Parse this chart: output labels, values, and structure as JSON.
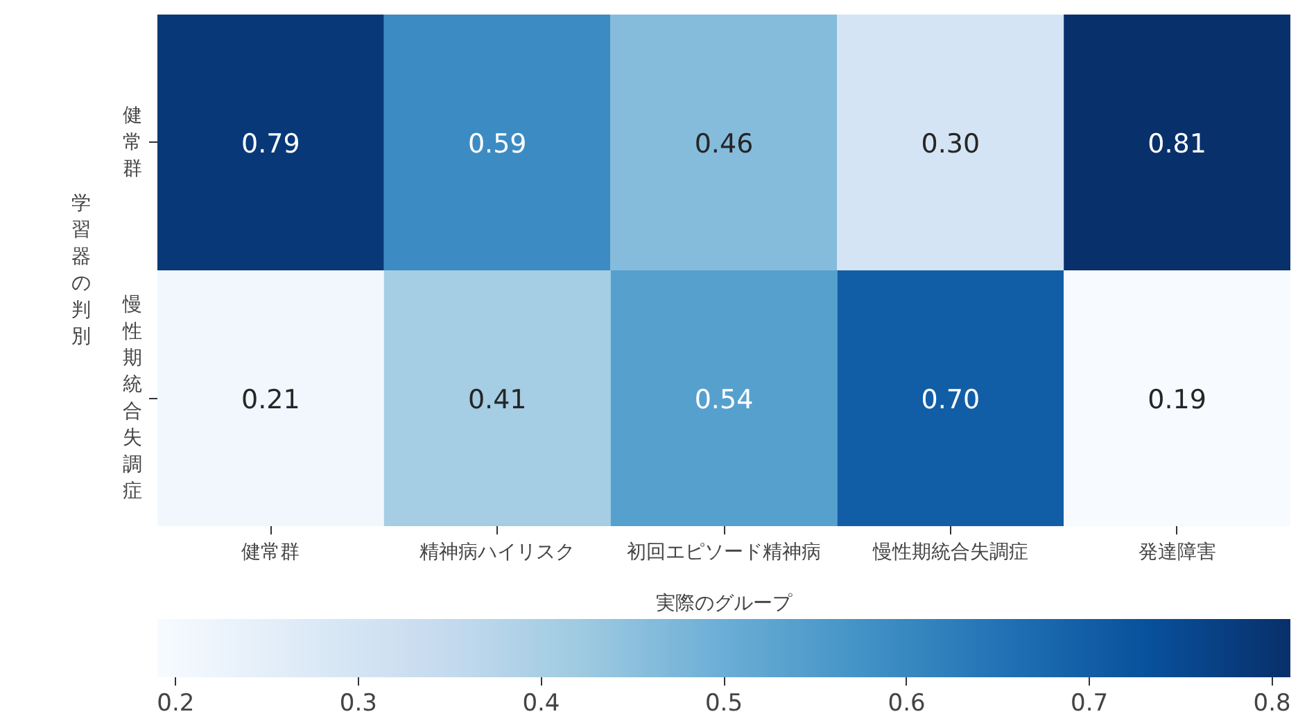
{
  "chart_data": {
    "type": "heatmap",
    "xlabel": "実際のグループ",
    "ylabel": "学習器の判別",
    "categories": [
      "健常群",
      "精神病ハイリスク",
      "初回エピソード精神病",
      "慢性期統合失調症",
      "発達障害"
    ],
    "y_categories": [
      "健常群",
      "慢性期統合失調症"
    ],
    "cells": [
      [
        0.79,
        0.59,
        0.46,
        0.3,
        0.81
      ],
      [
        0.21,
        0.41,
        0.54,
        0.7,
        0.19
      ]
    ],
    "cell_labels": [
      [
        "0.79",
        "0.59",
        "0.46",
        "0.30",
        "0.81"
      ],
      [
        "0.21",
        "0.41",
        "0.54",
        "0.70",
        "0.19"
      ]
    ],
    "clim": [
      0.19,
      0.81
    ],
    "cticks": [
      0.2,
      0.3,
      0.4,
      0.5,
      0.6,
      0.7,
      0.8
    ]
  }
}
